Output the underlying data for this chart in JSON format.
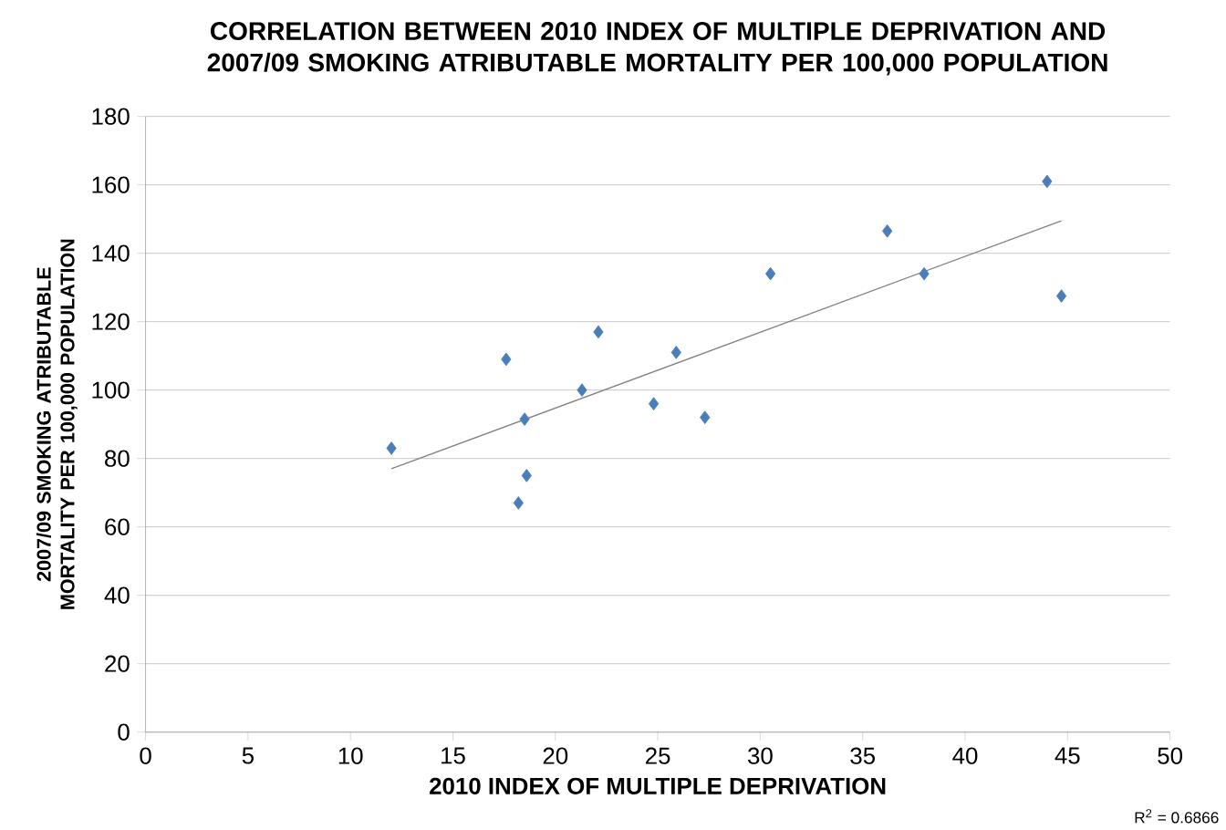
{
  "chart_data": {
    "type": "scatter",
    "title": "CORRELATION BETWEEN 2010 INDEX OF MULTIPLE DEPRIVATION AND 2007/09 SMOKING ATRIBUTABLE MORTALITY PER 100,000 POPULATION",
    "xlabel": "2010 INDEX OF MULTIPLE DEPRIVATION",
    "ylabel": "2007/09 SMOKING ATRIBUTABLE MORTALITY PER 100,000 POPULATION",
    "annotations": [
      "R$^{2}$ = 0.6866"
    ],
    "series": [
      {
        "type": "scatter",
        "color": "#4a7ebb",
        "marker": "diamond",
        "x": [
          12.0,
          17.6,
          18.2,
          18.5,
          18.6,
          21.3,
          22.1,
          24.8,
          25.9,
          27.3,
          30.5,
          36.2,
          38.0,
          44.0,
          44.7
        ],
        "values": [
          83,
          109,
          67,
          91.5,
          75,
          100,
          117,
          96,
          111,
          92,
          134,
          146.5,
          134,
          161,
          127.5
        ]
      },
      {
        "type": "line",
        "color": "#808080",
        "marker": "none",
        "x": [
          12.0,
          44.7
        ],
        "values": [
          77,
          149.5
        ]
      }
    ],
    "xlim": [
      0,
      50
    ],
    "xticks": [
      0,
      5,
      10,
      15,
      20,
      25,
      30,
      35,
      40,
      45,
      50
    ],
    "ylim": [
      0,
      180
    ],
    "yticks": [
      0,
      20,
      40,
      60,
      80,
      100,
      120,
      140,
      160,
      180
    ],
    "grid": "y",
    "legend": false
  }
}
